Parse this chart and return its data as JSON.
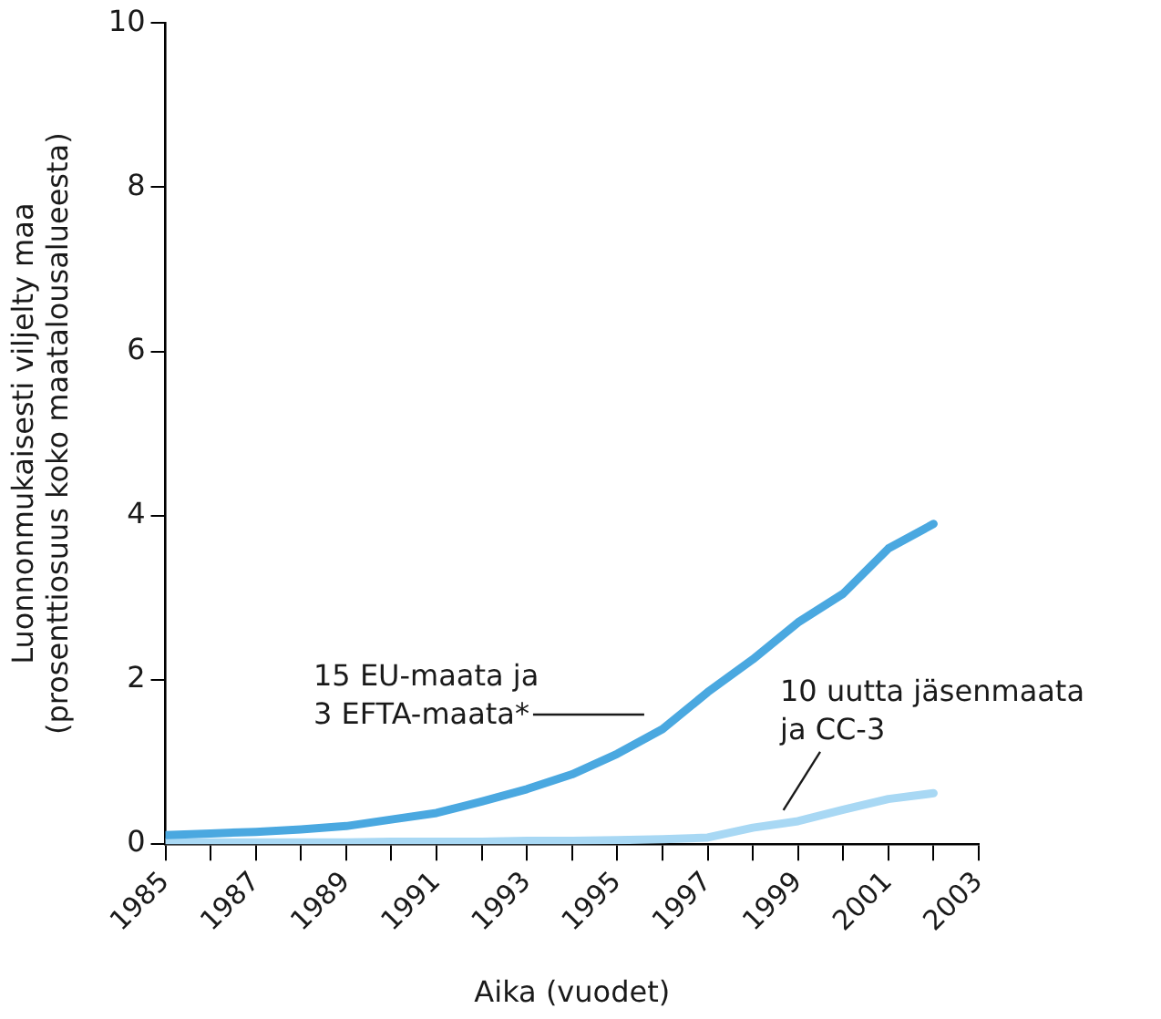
{
  "chart_data": {
    "type": "line",
    "xlabel": "Aika (vuodet)",
    "ylabel": "Luonnonmukaisesti viljelty maa\n(prosenttiosuus koko maatalousalueesta)",
    "x": [
      1985,
      1986,
      1987,
      1988,
      1989,
      1990,
      1991,
      1992,
      1993,
      1994,
      1995,
      1996,
      1997,
      1998,
      1999,
      2000,
      2001,
      2002
    ],
    "series": [
      {
        "name": "15 EU-maata ja\n3 EFTA-maata*",
        "color": "#4aa8e0",
        "values": [
          0.11,
          0.13,
          0.15,
          0.18,
          0.22,
          0.3,
          0.38,
          0.52,
          0.67,
          0.85,
          1.1,
          1.4,
          1.85,
          2.25,
          2.7,
          3.05,
          3.6,
          3.9
        ]
      },
      {
        "name": "10 uutta jäsenmaata\nja CC-3",
        "color": "#a8d8f4",
        "values": [
          0.02,
          0.02,
          0.02,
          0.02,
          0.02,
          0.03,
          0.03,
          0.03,
          0.04,
          0.04,
          0.05,
          0.06,
          0.08,
          0.2,
          0.28,
          0.42,
          0.55,
          0.62
        ]
      }
    ],
    "xlim": [
      1985,
      2003
    ],
    "xticks": [
      1985,
      {
        "value": 1986,
        "label": null
      },
      1987,
      {
        "value": 1988,
        "label": null
      },
      1989,
      {
        "value": 1990,
        "label": null
      },
      1991,
      {
        "value": 1992,
        "label": null
      },
      1993,
      {
        "value": 1994,
        "label": null
      },
      1995,
      {
        "value": 1996,
        "label": null
      },
      1997,
      {
        "value": 1998,
        "label": null
      },
      1999,
      {
        "value": 2000,
        "label": null
      },
      2001,
      {
        "value": 2002,
        "label": null
      },
      2003
    ],
    "ylim": [
      0,
      10
    ],
    "yticks": [
      0,
      2,
      4,
      6,
      8,
      10
    ],
    "grid": false,
    "legend": false,
    "marker": "none",
    "line_style": "solid"
  }
}
